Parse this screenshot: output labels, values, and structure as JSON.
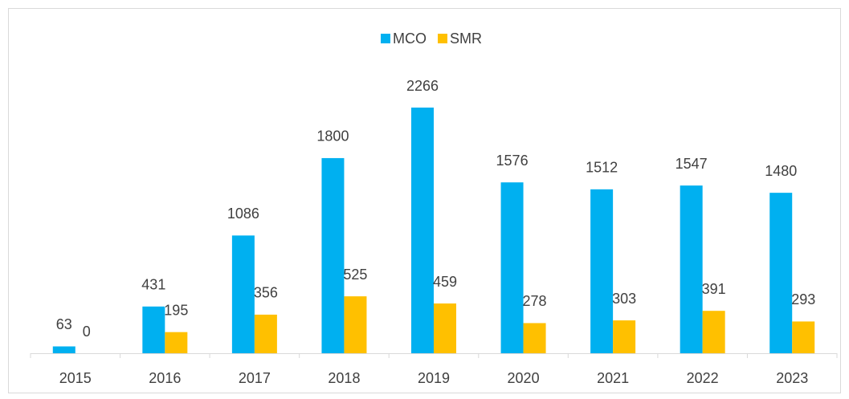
{
  "chart_data": {
    "type": "bar",
    "categories": [
      "2015",
      "2016",
      "2017",
      "2018",
      "2019",
      "2020",
      "2021",
      "2022",
      "2023"
    ],
    "series": [
      {
        "name": "MCO",
        "color": "#00b0f0",
        "values": [
          63,
          431,
          1086,
          1800,
          2266,
          1576,
          1512,
          1547,
          1480
        ]
      },
      {
        "name": "SMR",
        "color": "#ffc000",
        "values": [
          0,
          195,
          356,
          525,
          459,
          278,
          303,
          391,
          293
        ]
      }
    ],
    "legend": "top"
  }
}
